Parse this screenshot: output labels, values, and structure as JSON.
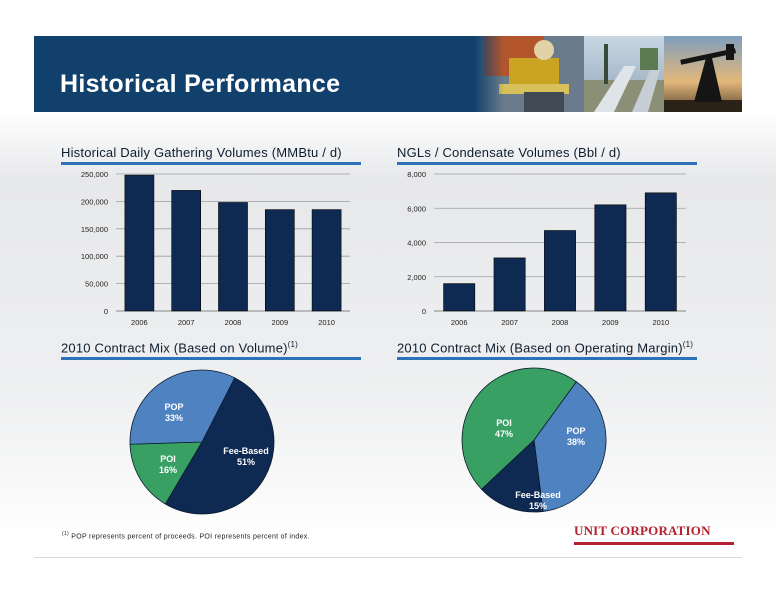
{
  "header": {
    "title": "Historical Performance"
  },
  "sections": {
    "gathering_title": "Historical Daily Gathering Volumes (MMBtu / d)",
    "ngl_title": "NGLs / Condensate Volumes (Bbl / d)",
    "mix_volume_title": "2010 Contract Mix (Based on Volume)",
    "mix_margin_title": "2010 Contract Mix (Based on Operating Margin)",
    "footnote_marker": "(1)"
  },
  "footnote": {
    "marker": "(1)",
    "text": " POP represents percent of proceeds. POI represents percent of index."
  },
  "logo": {
    "text": "UNIT CORPORATION",
    "color": "#b3202f"
  },
  "colors": {
    "navy": "#0e2a52",
    "blue": "#4f82c1",
    "green": "#38a063",
    "banner": "#10406b",
    "rule": "#2b72b8"
  },
  "chart_data": [
    {
      "type": "bar",
      "title": "Historical Daily Gathering Volumes (MMBtu / d)",
      "categories": [
        "2006",
        "2007",
        "2008",
        "2009",
        "2010"
      ],
      "values": [
        248000,
        220000,
        198000,
        185000,
        185000
      ],
      "ylim": [
        0,
        250000
      ],
      "yticks": [
        "0",
        "50,000",
        "100,000",
        "150,000",
        "200,000",
        "250,000"
      ],
      "grid": true
    },
    {
      "type": "bar",
      "title": "NGLs / Condensate Volumes (Bbl / d)",
      "categories": [
        "2006",
        "2007",
        "2008",
        "2009",
        "2010"
      ],
      "values": [
        1600,
        3100,
        4700,
        6200,
        6900
      ],
      "ylim": [
        0,
        8000
      ],
      "yticks": [
        "0",
        "2,000",
        "4,000",
        "6,000",
        "8,000"
      ],
      "grid": true
    },
    {
      "type": "pie",
      "title": "2010 Contract Mix (Based on Volume)",
      "slices": [
        {
          "label": "Fee-Based",
          "value": 51,
          "display": "51%",
          "color": "#0e2a52"
        },
        {
          "label": "POI",
          "value": 16,
          "display": "16%",
          "color": "#38a063"
        },
        {
          "label": "POP",
          "value": 33,
          "display": "33%",
          "color": "#4f82c1"
        }
      ]
    },
    {
      "type": "pie",
      "title": "2010 Contract Mix (Based on Operating Margin)",
      "slices": [
        {
          "label": "POP",
          "value": 38,
          "display": "38%",
          "color": "#4f82c1"
        },
        {
          "label": "Fee-Based",
          "value": 15,
          "display": "15%",
          "color": "#0e2a52"
        },
        {
          "label": "POI",
          "value": 47,
          "display": "47%",
          "color": "#38a063"
        }
      ]
    }
  ]
}
